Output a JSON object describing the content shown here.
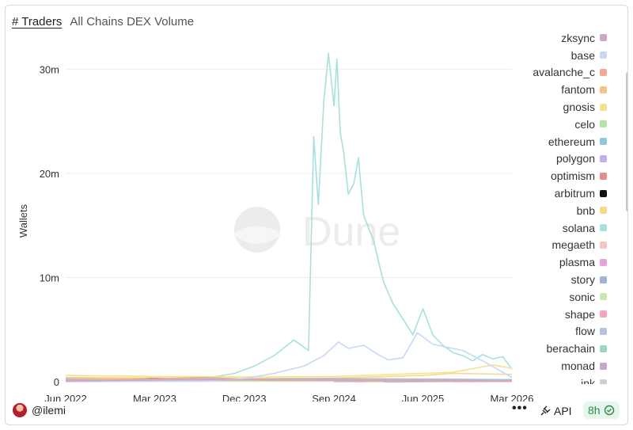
{
  "header": {
    "tab": "# Traders",
    "subtitle": "All Chains DEX Volume"
  },
  "watermark": "Dune",
  "chart_data": {
    "type": "line",
    "ylabel": "Wallets",
    "xlabel": "",
    "ylim": [
      0,
      32000000
    ],
    "yticks": [
      0,
      10000000,
      20000000,
      30000000
    ],
    "ytick_labels": [
      "0",
      "10m",
      "20m",
      "30m"
    ],
    "xlim": [
      "2022-06-01",
      "2026-03-01"
    ],
    "xticks": [
      "2022-06-01",
      "2023-03-01",
      "2023-12-01",
      "2024-09-01",
      "2025-06-01",
      "2026-03-01"
    ],
    "xtick_labels": [
      "Jun 2022",
      "Mar 2023",
      "Dec 2023",
      "Sep 2024",
      "Jun 2025",
      "Mar 2026"
    ],
    "grid": true,
    "legend": "right",
    "series": [
      {
        "name": "zksync",
        "color": "#c9a8c9",
        "x": [
          "2022-06-01",
          "2023-06-01",
          "2024-06-01",
          "2025-06-01",
          "2026-03-01"
        ],
        "values": [
          50000,
          200000,
          150000,
          60000,
          40000
        ]
      },
      {
        "name": "base",
        "color": "#c6d8f5",
        "x": [
          "2022-06-01",
          "2023-08-01",
          "2023-12-01",
          "2024-03-01",
          "2024-06-01",
          "2024-08-01",
          "2024-09-15",
          "2024-10-15",
          "2024-12-01",
          "2025-01-15",
          "2025-02-15",
          "2025-04-01",
          "2025-05-15",
          "2025-07-01",
          "2025-08-15",
          "2025-10-01",
          "2025-12-01",
          "2026-01-15",
          "2026-03-01"
        ],
        "values": [
          0,
          50000,
          300000,
          800000,
          1500000,
          2500000,
          3800000,
          3200000,
          3500000,
          2600000,
          2100000,
          2300000,
          4700000,
          3600000,
          3300000,
          3000000,
          2000000,
          1200000,
          400000
        ]
      },
      {
        "name": "avalanche_c",
        "color": "#f0a898",
        "x": [
          "2022-06-01",
          "2022-12-01",
          "2023-04-01",
          "2023-08-01",
          "2023-12-01",
          "2024-06-01",
          "2025-06-01",
          "2026-03-01"
        ],
        "values": [
          100000,
          200000,
          300000,
          400000,
          250000,
          200000,
          150000,
          100000
        ]
      },
      {
        "name": "fantom",
        "color": "#f2c38a",
        "x": [
          "2022-06-01",
          "2022-10-01",
          "2023-03-01",
          "2023-08-01",
          "2023-12-01",
          "2024-06-01",
          "2025-06-01",
          "2026-03-01"
        ],
        "values": [
          350000,
          300000,
          250000,
          200000,
          150000,
          100000,
          50000,
          30000
        ]
      },
      {
        "name": "gnosis",
        "color": "#f7e08e",
        "x": [
          "2022-06-01",
          "2023-03-01",
          "2023-12-01",
          "2024-09-01",
          "2025-03-01",
          "2025-09-01",
          "2026-01-01",
          "2026-03-01"
        ],
        "values": [
          600000,
          500000,
          450000,
          500000,
          700000,
          900000,
          1600000,
          1300000
        ]
      },
      {
        "name": "celo",
        "color": "#b9e3a6",
        "x": [
          "2022-06-01",
          "2023-06-01",
          "2024-06-01",
          "2025-06-01",
          "2026-03-01"
        ],
        "values": [
          50000,
          80000,
          100000,
          120000,
          100000
        ]
      },
      {
        "name": "ethereum",
        "color": "#8fc8de",
        "x": [
          "2022-06-01",
          "2023-06-01",
          "2024-06-01",
          "2025-06-01",
          "2026-03-01"
        ],
        "values": [
          300000,
          250000,
          250000,
          200000,
          180000
        ]
      },
      {
        "name": "polygon",
        "color": "#c3b0ea",
        "x": [
          "2022-06-01",
          "2023-03-01",
          "2023-12-01",
          "2024-09-01",
          "2025-06-01",
          "2026-03-01"
        ],
        "values": [
          200000,
          200000,
          250000,
          300000,
          250000,
          200000
        ]
      },
      {
        "name": "optimism",
        "color": "#e78b8b",
        "x": [
          "2022-06-01",
          "2023-06-01",
          "2024-06-01",
          "2025-06-01",
          "2026-03-01"
        ],
        "values": [
          100000,
          150000,
          150000,
          100000,
          80000
        ]
      },
      {
        "name": "arbitrum",
        "color": "#111111",
        "x": [
          "2022-06-01",
          "2023-03-01",
          "2023-06-01",
          "2023-12-01",
          "2024-06-01",
          "2025-06-01",
          "2026-03-01"
        ],
        "values": [
          150000,
          300000,
          250000,
          200000,
          150000,
          100000,
          80000
        ]
      },
      {
        "name": "bnb",
        "color": "#f6d98a",
        "x": [
          "2022-06-01",
          "2023-03-01",
          "2023-12-01",
          "2024-09-01",
          "2025-06-01",
          "2025-09-01",
          "2026-03-01"
        ],
        "values": [
          400000,
          350000,
          300000,
          350000,
          600000,
          800000,
          700000
        ]
      },
      {
        "name": "solana",
        "color": "#a6e1dc",
        "x": [
          "2022-06-01",
          "2023-05-01",
          "2023-08-01",
          "2023-11-01",
          "2024-01-01",
          "2024-03-01",
          "2024-05-01",
          "2024-06-15",
          "2024-07-01",
          "2024-07-15",
          "2024-08-01",
          "2024-08-15",
          "2024-09-01",
          "2024-09-10",
          "2024-09-20",
          "2024-10-01",
          "2024-10-15",
          "2024-11-01",
          "2024-11-15",
          "2024-12-01",
          "2025-01-01",
          "2025-01-20",
          "2025-02-01",
          "2025-03-01",
          "2025-04-01",
          "2025-05-01",
          "2025-06-01",
          "2025-07-01",
          "2025-08-01",
          "2025-09-01",
          "2025-10-01",
          "2025-11-01",
          "2025-12-01",
          "2026-01-01",
          "2026-02-01",
          "2026-03-01"
        ],
        "values": [
          100000,
          150000,
          300000,
          800000,
          1500000,
          2500000,
          4000000,
          3000000,
          23500000,
          17000000,
          27000000,
          31500000,
          26500000,
          31000000,
          24000000,
          22000000,
          18000000,
          19000000,
          21500000,
          16000000,
          13500000,
          11000000,
          9500000,
          7500000,
          6000000,
          4500000,
          7000000,
          4500000,
          3500000,
          2800000,
          2500000,
          2000000,
          2600000,
          2200000,
          2400000,
          1200000
        ]
      },
      {
        "name": "megaeth",
        "color": "#f6c6c0",
        "x": [
          "2025-12-01",
          "2026-03-01"
        ],
        "values": [
          0,
          100000
        ]
      },
      {
        "name": "plasma",
        "color": "#e8a3d8",
        "x": [
          "2025-09-01",
          "2026-03-01"
        ],
        "values": [
          0,
          50000
        ]
      },
      {
        "name": "story",
        "color": "#9eb6cf",
        "x": [
          "2025-02-01",
          "2026-03-01"
        ],
        "values": [
          0,
          50000
        ]
      },
      {
        "name": "sonic",
        "color": "#c9e8b0",
        "x": [
          "2024-12-01",
          "2026-03-01"
        ],
        "values": [
          0,
          100000
        ]
      },
      {
        "name": "shape",
        "color": "#f4a7b8",
        "x": [
          "2024-11-01",
          "2026-03-01"
        ],
        "values": [
          0,
          30000
        ]
      },
      {
        "name": "flow",
        "color": "#b7c3dc",
        "x": [
          "2024-09-01",
          "2026-03-01"
        ],
        "values": [
          0,
          50000
        ]
      },
      {
        "name": "berachain",
        "color": "#9dd6c0",
        "x": [
          "2025-02-01",
          "2026-03-01"
        ],
        "values": [
          0,
          150000
        ]
      },
      {
        "name": "monad",
        "color": "#c7a6cf",
        "x": [
          "2025-11-01",
          "2026-03-01"
        ],
        "values": [
          0,
          200000
        ]
      },
      {
        "name": "ink",
        "color": "#cfcfcf",
        "x": [
          "2024-12-01",
          "2026-03-01"
        ],
        "values": [
          0,
          80000
        ]
      }
    ]
  },
  "footer": {
    "username": "@ilemi",
    "more": "•••",
    "api_label": "API",
    "refresh_label": "8h"
  }
}
